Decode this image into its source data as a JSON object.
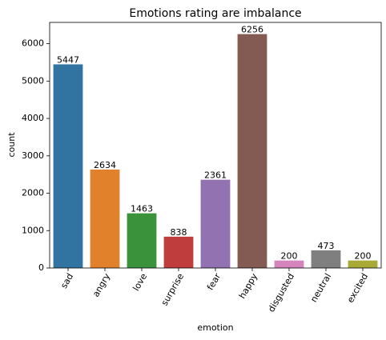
{
  "chart_data": {
    "type": "bar",
    "title": "Emotions rating are imbalance",
    "xlabel": "emotion",
    "ylabel": "count",
    "categories": [
      "sad",
      "angry",
      "love",
      "surprise",
      "fear",
      "happy",
      "disgusted",
      "neutral",
      "excited"
    ],
    "values": [
      5447,
      2634,
      1463,
      838,
      2361,
      6256,
      200,
      473,
      200
    ],
    "data_labels": [
      "5447",
      "2634",
      "1463",
      "838",
      "2361",
      "6256",
      "200",
      "473",
      "200"
    ],
    "colors": [
      "#3274a1",
      "#e1812c",
      "#3a923a",
      "#c03d3e",
      "#9372b2",
      "#845b53",
      "#d684bd",
      "#7f7f7f",
      "#a9aa35"
    ],
    "ylim": [
      0,
      6569
    ],
    "yticks": [
      0,
      1000,
      2000,
      3000,
      4000,
      5000,
      6000
    ],
    "ytick_labels": [
      "0",
      "1000",
      "2000",
      "3000",
      "4000",
      "5000",
      "6000"
    ],
    "x_tick_rotation_deg": 60,
    "grid": false,
    "legend": "none"
  }
}
